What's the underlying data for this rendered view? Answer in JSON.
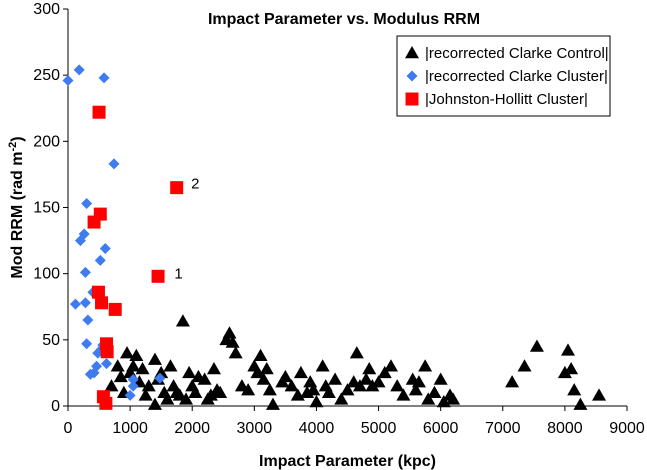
{
  "chart_data": {
    "type": "scatter",
    "title": "Impact Parameter vs. Modulus RRM",
    "xlabel": "Impact Parameter (kpc)",
    "ylabel": "Mod RRM (rad m",
    "ylabel_sup": "-2",
    "ylabel_tail": ")",
    "xlim": [
      0,
      9000
    ],
    "ylim": [
      0,
      300
    ],
    "xticks": [
      0,
      1000,
      2000,
      3000,
      4000,
      5000,
      6000,
      7000,
      8000,
      9000
    ],
    "yticks": [
      0,
      50,
      100,
      150,
      200,
      250,
      300
    ],
    "grid": false,
    "legend_position": "top-right",
    "series": [
      {
        "name": "|recorrected Clarke Control|",
        "marker": "triangle",
        "color": "#000000",
        "points": [
          [
            700,
            15
          ],
          [
            800,
            30
          ],
          [
            850,
            22
          ],
          [
            900,
            10
          ],
          [
            950,
            40
          ],
          [
            1000,
            25
          ],
          [
            1050,
            30
          ],
          [
            1100,
            38
          ],
          [
            1150,
            18
          ],
          [
            1200,
            28
          ],
          [
            1250,
            8
          ],
          [
            1300,
            15
          ],
          [
            1400,
            1
          ],
          [
            1400,
            35
          ],
          [
            1450,
            20
          ],
          [
            1500,
            25
          ],
          [
            1550,
            10
          ],
          [
            1600,
            5
          ],
          [
            1650,
            30
          ],
          [
            1700,
            15
          ],
          [
            1750,
            10
          ],
          [
            1800,
            8
          ],
          [
            1850,
            64
          ],
          [
            1900,
            5
          ],
          [
            1950,
            25
          ],
          [
            2000,
            15
          ],
          [
            2050,
            10
          ],
          [
            2100,
            22
          ],
          [
            2200,
            20
          ],
          [
            2250,
            5
          ],
          [
            2300,
            8
          ],
          [
            2350,
            28
          ],
          [
            2400,
            12
          ],
          [
            2450,
            10
          ],
          [
            2550,
            50
          ],
          [
            2600,
            55
          ],
          [
            2650,
            48
          ],
          [
            2700,
            40
          ],
          [
            2800,
            15
          ],
          [
            2900,
            12
          ],
          [
            3000,
            30
          ],
          [
            3050,
            25
          ],
          [
            3100,
            38
          ],
          [
            3150,
            20
          ],
          [
            3200,
            28
          ],
          [
            3250,
            12
          ],
          [
            3300,
            1
          ],
          [
            3450,
            18
          ],
          [
            3500,
            22
          ],
          [
            3600,
            15
          ],
          [
            3700,
            8
          ],
          [
            3750,
            25
          ],
          [
            3850,
            10
          ],
          [
            3900,
            18
          ],
          [
            3950,
            12
          ],
          [
            4000,
            3
          ],
          [
            4100,
            30
          ],
          [
            4150,
            15
          ],
          [
            4200,
            10
          ],
          [
            4300,
            20
          ],
          [
            4400,
            5
          ],
          [
            4500,
            12
          ],
          [
            4600,
            18
          ],
          [
            4650,
            40
          ],
          [
            4700,
            15
          ],
          [
            4800,
            20
          ],
          [
            4850,
            28
          ],
          [
            4900,
            15
          ],
          [
            5000,
            18
          ],
          [
            5100,
            25
          ],
          [
            5200,
            30
          ],
          [
            5300,
            15
          ],
          [
            5400,
            8
          ],
          [
            5550,
            20
          ],
          [
            5600,
            12
          ],
          [
            5650,
            18
          ],
          [
            5750,
            30
          ],
          [
            5800,
            5
          ],
          [
            5900,
            10
          ],
          [
            6000,
            20
          ],
          [
            6050,
            3
          ],
          [
            6150,
            8
          ],
          [
            6200,
            5
          ],
          [
            7150,
            18
          ],
          [
            7350,
            30
          ],
          [
            7550,
            45
          ],
          [
            8000,
            25
          ],
          [
            8050,
            42
          ],
          [
            8100,
            28
          ],
          [
            8150,
            12
          ],
          [
            8250,
            1
          ],
          [
            8550,
            8
          ]
        ]
      },
      {
        "name": "|recorrected Clarke Cluster|",
        "marker": "diamond",
        "color": "#3e7cf0",
        "points": [
          [
            0,
            246
          ],
          [
            180,
            254
          ],
          [
            580,
            248
          ],
          [
            120,
            77
          ],
          [
            200,
            125
          ],
          [
            260,
            130
          ],
          [
            300,
            153
          ],
          [
            280,
            101
          ],
          [
            320,
            65
          ],
          [
            280,
            78
          ],
          [
            300,
            47
          ],
          [
            360,
            24
          ],
          [
            400,
            86
          ],
          [
            420,
            25
          ],
          [
            460,
            30
          ],
          [
            480,
            40
          ],
          [
            520,
            110
          ],
          [
            540,
            43
          ],
          [
            560,
            46
          ],
          [
            600,
            119
          ],
          [
            620,
            32
          ],
          [
            740,
            183
          ],
          [
            1000,
            8
          ],
          [
            1050,
            15
          ],
          [
            1050,
            20
          ],
          [
            1480,
            21
          ]
        ]
      },
      {
        "name": "|Johnston-Hollitt Cluster|",
        "marker": "square",
        "color": "#ff0000",
        "points": [
          [
            500,
            222
          ],
          [
            420,
            139
          ],
          [
            520,
            145
          ],
          [
            490,
            86
          ],
          [
            540,
            78
          ],
          [
            570,
            7
          ],
          [
            610,
            2
          ],
          [
            620,
            47
          ],
          [
            630,
            41
          ],
          [
            760,
            73
          ],
          [
            1450,
            98
          ],
          [
            1750,
            165
          ]
        ]
      }
    ],
    "annotations": [
      {
        "text": "2",
        "x": 2050,
        "y": 168
      },
      {
        "text": "1",
        "x": 1780,
        "y": 100
      }
    ]
  }
}
